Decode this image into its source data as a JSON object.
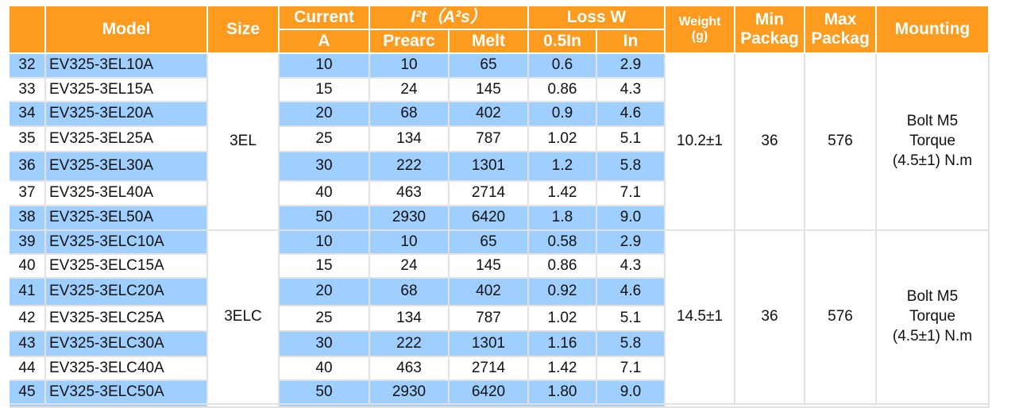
{
  "header": [
    "Model",
    "Size",
    "Current",
    "A",
    "I²t（A²s）",
    "Prearc",
    "Melt",
    "Loss W",
    "0.5In",
    "In",
    "Weight",
    "(g)",
    "Min",
    "Packag",
    "Max",
    "Packag",
    "Mounting"
  ],
  "groups": [
    {
      "size": "3EL",
      "weight": "10.2±1",
      "min": "36",
      "max": "576",
      "mounting": [
        "Bolt M5",
        "Torque",
        "(4.5±1) N.m"
      ],
      "rows": [
        [
          "32",
          "EV325-3EL10A",
          "10",
          "10",
          "65",
          "0.6",
          "2.9"
        ],
        [
          "33",
          "EV325-3EL15A",
          "15",
          "24",
          "145",
          "0.86",
          "4.3"
        ],
        [
          "34",
          "EV325-3EL20A",
          "20",
          "68",
          "402",
          "0.9",
          "4.6"
        ],
        [
          "35",
          "EV325-3EL25A",
          "25",
          "134",
          "787",
          "1.02",
          "5.1"
        ],
        [
          "36",
          "EV325-3EL30A",
          "30",
          "222",
          "1301",
          "1.2",
          "5.8"
        ],
        [
          "37",
          "EV325-3EL40A",
          "40",
          "463",
          "2714",
          "1.42",
          "7.1"
        ],
        [
          "38",
          "EV325-3EL50A",
          "50",
          "2930",
          "6420",
          "1.8",
          "9.0"
        ]
      ]
    },
    {
      "size": "3ELC",
      "weight": "14.5±1",
      "min": "36",
      "max": "576",
      "mounting": [
        "Bolt M5",
        "Torque",
        "(4.5±1) N.m"
      ],
      "rows": [
        [
          "39",
          "EV325-3ELC10A",
          "10",
          "10",
          "65",
          "0.58",
          "2.9"
        ],
        [
          "40",
          "EV325-3ELC15A",
          "15",
          "24",
          "145",
          "0.86",
          "4.3"
        ],
        [
          "41",
          "EV325-3ELC20A",
          "20",
          "68",
          "402",
          "0.92",
          "4.6"
        ],
        [
          "42",
          "EV325-3ELC25A",
          "25",
          "134",
          "787",
          "1.02",
          "5.1"
        ],
        [
          "43",
          "EV325-3ELC30A",
          "30",
          "222",
          "1301",
          "1.16",
          "5.8"
        ],
        [
          "44",
          "EV325-3ELC40A",
          "40",
          "463",
          "2714",
          "1.42",
          "7.1"
        ],
        [
          "45",
          "EV325-3ELC50A",
          "50",
          "2930",
          "6420",
          "1.80",
          "9.0"
        ]
      ]
    }
  ]
}
